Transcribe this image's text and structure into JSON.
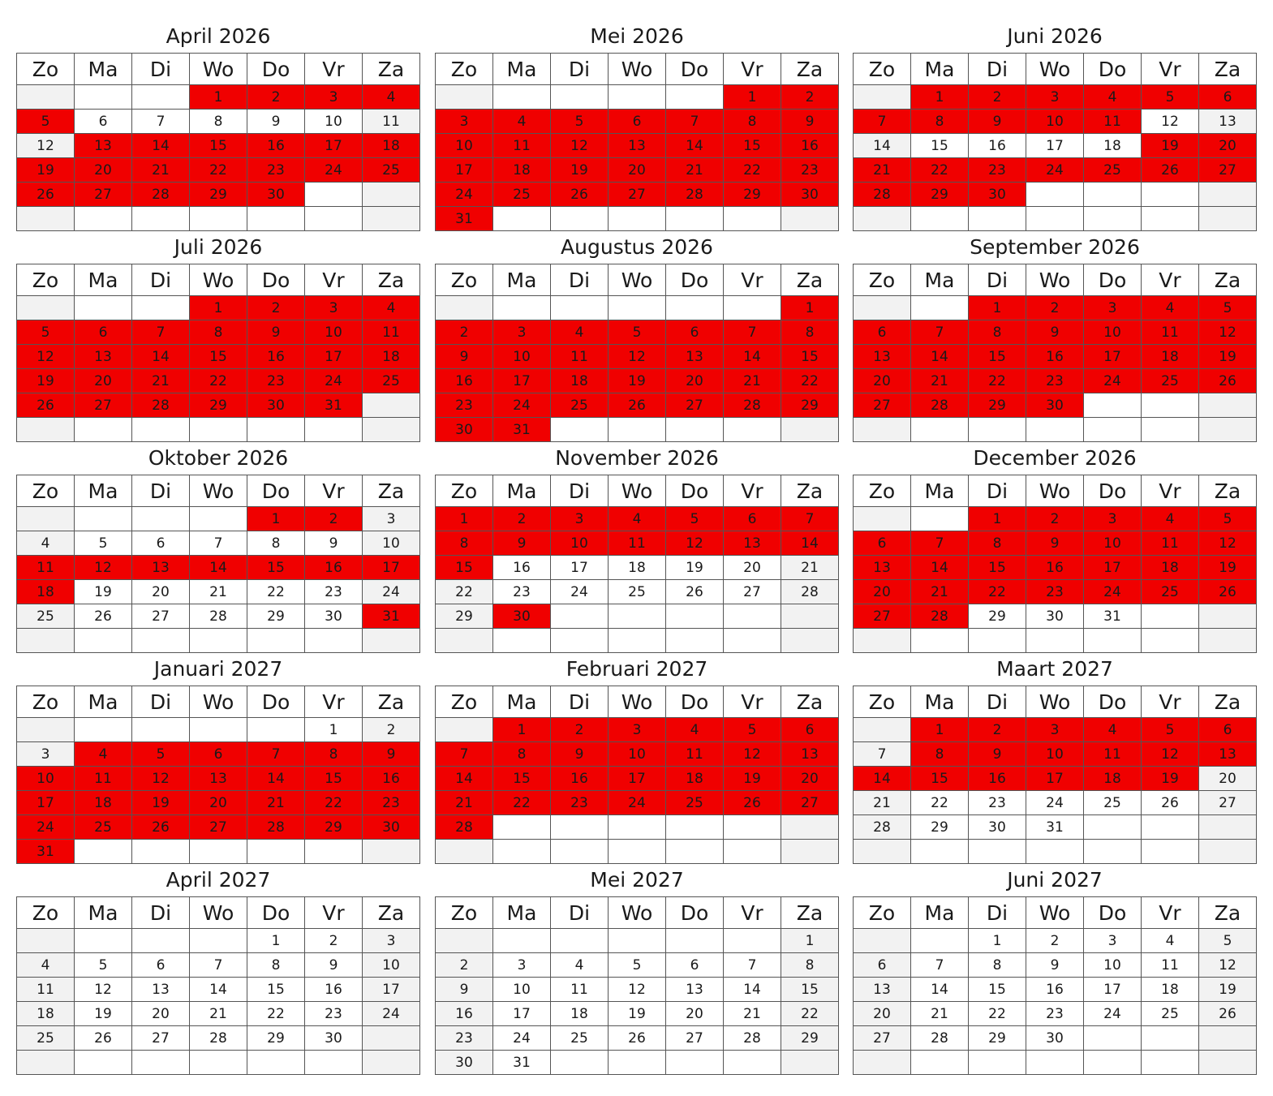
{
  "weekdays": [
    "Zo",
    "Ma",
    "Di",
    "Wo",
    "Do",
    "Vr",
    "Za"
  ],
  "colors": {
    "highlight": "#f00000",
    "weekend": "#f2f2f2",
    "normal": "#ffffff",
    "border": "#555555"
  },
  "months": [
    {
      "title": "April 2026",
      "offset": 3,
      "days": 30,
      "highlighted": [
        1,
        2,
        3,
        4,
        5,
        13,
        14,
        15,
        16,
        17,
        18,
        19,
        20,
        21,
        22,
        23,
        24,
        25,
        26,
        27,
        28,
        29,
        30
      ]
    },
    {
      "title": "Mei 2026",
      "offset": 5,
      "days": 31,
      "highlighted": [
        1,
        2,
        3,
        4,
        5,
        6,
        7,
        8,
        9,
        10,
        11,
        12,
        13,
        14,
        15,
        16,
        17,
        18,
        19,
        20,
        21,
        22,
        23,
        24,
        25,
        26,
        27,
        28,
        29,
        30,
        31
      ]
    },
    {
      "title": "Juni 2026",
      "offset": 1,
      "days": 30,
      "highlighted": [
        1,
        2,
        3,
        4,
        5,
        6,
        7,
        8,
        9,
        10,
        11,
        19,
        20,
        21,
        22,
        23,
        24,
        25,
        26,
        27,
        28,
        29,
        30
      ]
    },
    {
      "title": "Juli 2026",
      "offset": 3,
      "days": 31,
      "highlighted": [
        1,
        2,
        3,
        4,
        5,
        6,
        7,
        8,
        9,
        10,
        11,
        12,
        13,
        14,
        15,
        16,
        17,
        18,
        19,
        20,
        21,
        22,
        23,
        24,
        25,
        26,
        27,
        28,
        29,
        30,
        31
      ]
    },
    {
      "title": "Augustus 2026",
      "offset": 6,
      "days": 31,
      "highlighted": [
        1,
        2,
        3,
        4,
        5,
        6,
        7,
        8,
        9,
        10,
        11,
        12,
        13,
        14,
        15,
        16,
        17,
        18,
        19,
        20,
        21,
        22,
        23,
        24,
        25,
        26,
        27,
        28,
        29,
        30,
        31
      ]
    },
    {
      "title": "September 2026",
      "offset": 2,
      "days": 30,
      "highlighted": [
        1,
        2,
        3,
        4,
        5,
        6,
        7,
        8,
        9,
        10,
        11,
        12,
        13,
        14,
        15,
        16,
        17,
        18,
        19,
        20,
        21,
        22,
        23,
        24,
        25,
        26,
        27,
        28,
        29,
        30
      ]
    },
    {
      "title": "Oktober 2026",
      "offset": 4,
      "days": 31,
      "highlighted": [
        1,
        2,
        11,
        12,
        13,
        14,
        15,
        16,
        17,
        18,
        31
      ]
    },
    {
      "title": "November 2026",
      "offset": 0,
      "days": 30,
      "highlighted": [
        1,
        2,
        3,
        4,
        5,
        6,
        7,
        8,
        9,
        10,
        11,
        12,
        13,
        14,
        15,
        30
      ]
    },
    {
      "title": "December 2026",
      "offset": 2,
      "days": 31,
      "highlighted": [
        1,
        2,
        3,
        4,
        5,
        6,
        7,
        8,
        9,
        10,
        11,
        12,
        13,
        14,
        15,
        16,
        17,
        18,
        19,
        20,
        21,
        22,
        23,
        24,
        25,
        26,
        27,
        28
      ]
    },
    {
      "title": "Januari 2027",
      "offset": 5,
      "days": 31,
      "highlighted": [
        4,
        5,
        6,
        7,
        8,
        9,
        10,
        11,
        12,
        13,
        14,
        15,
        16,
        17,
        18,
        19,
        20,
        21,
        22,
        23,
        24,
        25,
        26,
        27,
        28,
        29,
        30,
        31
      ]
    },
    {
      "title": "Februari 2027",
      "offset": 1,
      "days": 28,
      "highlighted": [
        1,
        2,
        3,
        4,
        5,
        6,
        7,
        8,
        9,
        10,
        11,
        12,
        13,
        14,
        15,
        16,
        17,
        18,
        19,
        20,
        21,
        22,
        23,
        24,
        25,
        26,
        27,
        28
      ]
    },
    {
      "title": "Maart 2027",
      "offset": 1,
      "days": 31,
      "highlighted": [
        1,
        2,
        3,
        4,
        5,
        6,
        8,
        9,
        10,
        11,
        12,
        13,
        14,
        15,
        16,
        17,
        18,
        19
      ]
    },
    {
      "title": "April 2027",
      "offset": 4,
      "days": 30,
      "highlighted": []
    },
    {
      "title": "Mei 2027",
      "offset": 6,
      "days": 31,
      "highlighted": []
    },
    {
      "title": "Juni 2027",
      "offset": 2,
      "days": 30,
      "highlighted": []
    }
  ]
}
